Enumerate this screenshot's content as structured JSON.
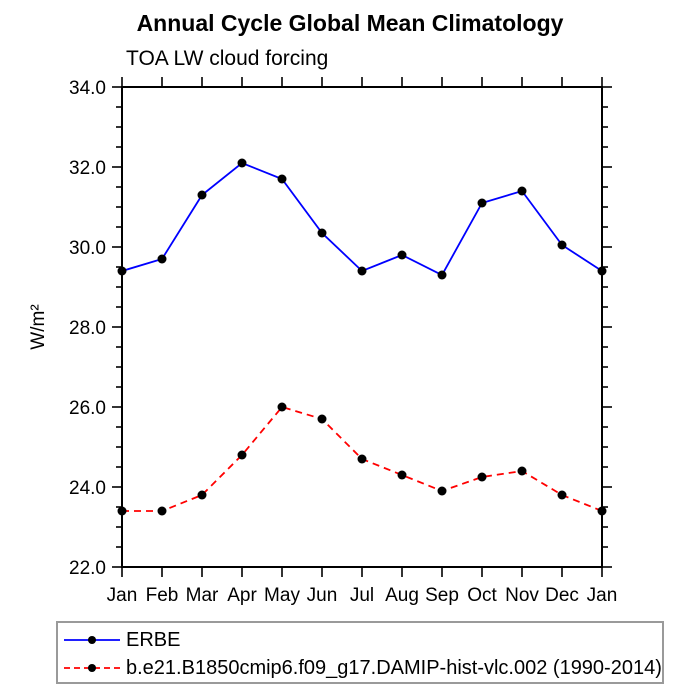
{
  "page": {
    "background": "#ffffff"
  },
  "chart_data": {
    "type": "line",
    "title": "Annual Cycle Global Mean Climatology",
    "subtitle": "TOA LW cloud forcing",
    "ylabel": "W/m²",
    "xlabel": "",
    "categories": [
      "Jan",
      "Feb",
      "Mar",
      "Apr",
      "May",
      "Jun",
      "Jul",
      "Aug",
      "Sep",
      "Oct",
      "Nov",
      "Dec",
      "Jan"
    ],
    "ylim": [
      22.0,
      34.0
    ],
    "ytick_major_step": 2.0,
    "ytick_minor_step": 0.5,
    "ytick_labels": [
      "22.0",
      "24.0",
      "26.0",
      "28.0",
      "30.0",
      "32.0",
      "34.0"
    ],
    "grid": false,
    "axis_color": "#000000",
    "marker_color": "#000000",
    "legend_position": "bottom-left-box",
    "series": [
      {
        "name": "ERBE",
        "color": "#0000ff",
        "line_style": "solid",
        "marker": "filled-circle",
        "marker_color": "#000000",
        "values": [
          29.4,
          29.7,
          31.3,
          32.1,
          31.7,
          30.35,
          29.4,
          29.8,
          29.3,
          31.1,
          31.4,
          30.05,
          29.4
        ]
      },
      {
        "name": "b.e21.B1850cmip6.f09_g17.DAMIP-hist-vlc.002 (1990-2014)",
        "color": "#ff0000",
        "line_style": "dashed",
        "marker": "filled-circle",
        "marker_color": "#000000",
        "values": [
          23.4,
          23.4,
          23.8,
          24.8,
          26.0,
          25.7,
          24.7,
          24.3,
          23.9,
          24.25,
          24.4,
          23.8,
          23.4
        ]
      }
    ]
  }
}
